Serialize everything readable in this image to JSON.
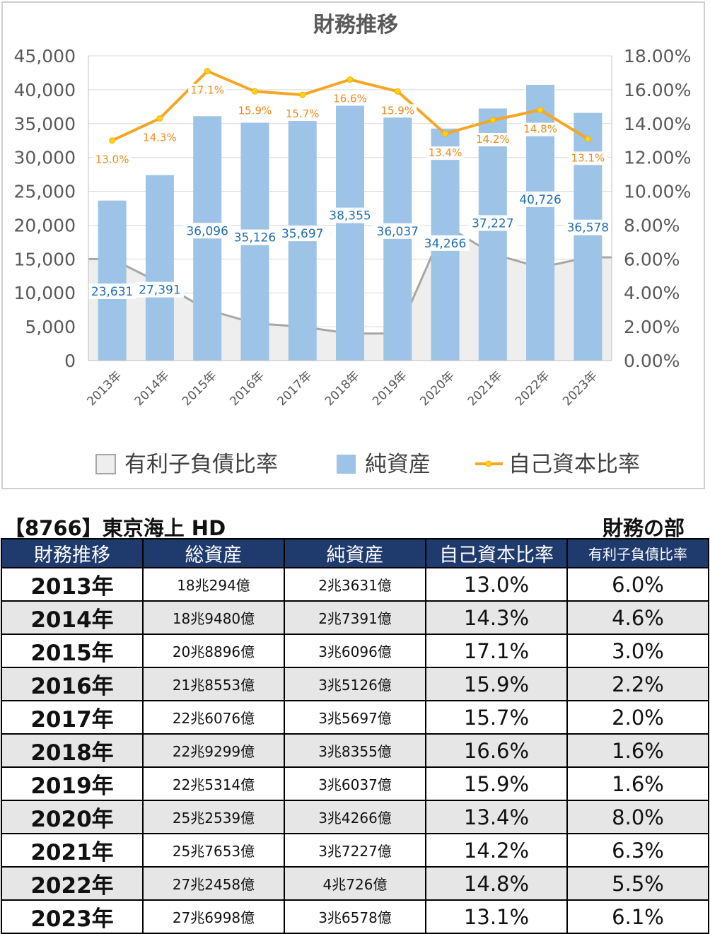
{
  "chart_data": {
    "type": "bar",
    "title": "財務推移",
    "categories": [
      "2013年",
      "2014年",
      "2015年",
      "2016年",
      "2017年",
      "2018年",
      "2019年",
      "2020年",
      "2021年",
      "2022年",
      "2023年"
    ],
    "series": [
      {
        "name": "有利子負債比率",
        "kind": "area",
        "axis": "right",
        "values": [
          6.0,
          4.6,
          3.0,
          2.2,
          2.0,
          1.6,
          1.6,
          8.0,
          6.3,
          5.5,
          6.1
        ],
        "color": "#a6a6a6"
      },
      {
        "name": "純資産",
        "kind": "bar",
        "axis": "left",
        "values": [
          23631,
          27391,
          36096,
          35126,
          35697,
          38355,
          36037,
          34266,
          37227,
          40726,
          36578
        ],
        "labels": [
          "23,631",
          "27,391",
          "36,096",
          "35,126",
          "35,697",
          "38,355",
          "36,037",
          "34,266",
          "37,227",
          "40,726",
          "36,578"
        ],
        "color": "#9dc3e6"
      },
      {
        "name": "自己資本比率",
        "kind": "line",
        "axis": "right",
        "values": [
          13.0,
          14.3,
          17.1,
          15.9,
          15.7,
          16.6,
          15.9,
          13.4,
          14.2,
          14.8,
          13.1
        ],
        "labels": [
          "13.0%",
          "14.3%",
          "17.1%",
          "15.9%",
          "15.7%",
          "16.6%",
          "15.9%",
          "13.4%",
          "14.2%",
          "14.8%",
          "13.1%"
        ],
        "color": "#f5a623"
      }
    ],
    "y_left": {
      "min": 0,
      "max": 45000,
      "ticks": [
        "0",
        "5,000",
        "10,000",
        "15,000",
        "20,000",
        "25,000",
        "30,000",
        "35,000",
        "40,000",
        "45,000"
      ]
    },
    "y_right": {
      "min": 0,
      "max": 18,
      "ticks": [
        "0.00%",
        "2.00%",
        "4.00%",
        "6.00%",
        "8.00%",
        "10.00%",
        "12.00%",
        "14.00%",
        "16.00%",
        "18.00%"
      ]
    },
    "legend_position": "bottom",
    "grid": true
  },
  "company": "【8766】東京海上 HD",
  "section": "財務の部",
  "table": {
    "headers": [
      "財務推移",
      "総資産",
      "純資産",
      "自己資本比率",
      "有利子負債比率"
    ],
    "rows": [
      [
        "2013年",
        "18兆294億",
        "2兆3631億",
        "13.0%",
        "6.0%"
      ],
      [
        "2014年",
        "18兆9480億",
        "2兆7391億",
        "14.3%",
        "4.6%"
      ],
      [
        "2015年",
        "20兆8896億",
        "3兆6096億",
        "17.1%",
        "3.0%"
      ],
      [
        "2016年",
        "21兆8553億",
        "3兆5126億",
        "15.9%",
        "2.2%"
      ],
      [
        "2017年",
        "22兆6076億",
        "3兆5697億",
        "15.7%",
        "2.0%"
      ],
      [
        "2018年",
        "22兆9299億",
        "3兆8355億",
        "16.6%",
        "1.6%"
      ],
      [
        "2019年",
        "22兆5314億",
        "3兆6037億",
        "15.9%",
        "1.6%"
      ],
      [
        "2020年",
        "25兆2539億",
        "3兆4266億",
        "13.4%",
        "8.0%"
      ],
      [
        "2021年",
        "25兆7653億",
        "3兆7227億",
        "14.2%",
        "6.3%"
      ],
      [
        "2022年",
        "27兆2458億",
        "4兆726億",
        "14.8%",
        "5.5%"
      ],
      [
        "2023年",
        "27兆6998億",
        "3兆6578億",
        "13.1%",
        "6.1%"
      ]
    ]
  }
}
